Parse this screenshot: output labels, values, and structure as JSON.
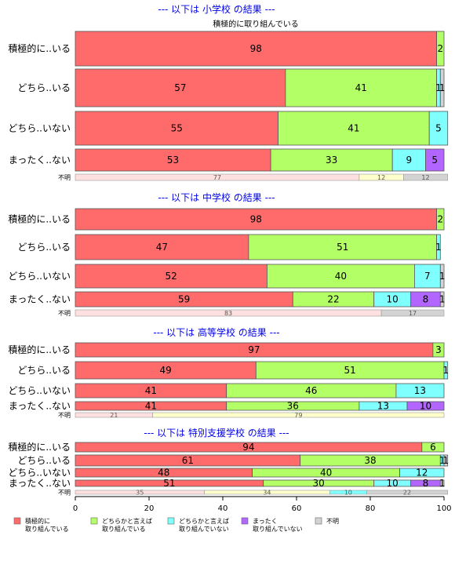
{
  "chart_data": {
    "type": "bar",
    "orientation": "horizontal",
    "stacked": true,
    "xlim": [
      0,
      100
    ],
    "x_ticks": [
      0,
      20,
      40,
      60,
      80,
      100
    ],
    "top_caption": "積極的に取り組んでいる",
    "colors": {
      "積極的に取り組んでいる": "#ff6b6b",
      "どちらかと言えば取り組んでいる": "#b3ff66",
      "どちらかと言えば取り組んでいない": "#80ffff",
      "まったく取り組んでいない": "#b366ff",
      "不明": "#d3d3d3",
      "unknown_seg1": "#ffe0e0",
      "unknown_seg2": "#ffffcc"
    },
    "legend": [
      {
        "key": "積極的に取り組んでいる",
        "lines": [
          "積極的に",
          "取り組んでいる"
        ]
      },
      {
        "key": "どちらかと言えば取り組んでいる",
        "lines": [
          "どちらかと言えば",
          "取り組んでいる"
        ]
      },
      {
        "key": "どちらかと言えば取り組んでいない",
        "lines": [
          "どちらかと言えば",
          "取り組んでいない"
        ]
      },
      {
        "key": "まったく取り組んでいない",
        "lines": [
          "まったく",
          "取り組んでいない"
        ]
      },
      {
        "key": "不明",
        "lines": [
          "不明"
        ]
      }
    ],
    "sections": [
      {
        "title": "--- 以下は 小学校 の結果 ---",
        "rows": [
          {
            "label": "積極的に..いる",
            "values": [
              98,
              2,
              0,
              0,
              0
            ]
          },
          {
            "label": "どちら..いる",
            "values": [
              57,
              41,
              1,
              0,
              1
            ]
          },
          {
            "label": "どちら..いない",
            "values": [
              55,
              41,
              5,
              0,
              0
            ]
          },
          {
            "label": "まったく..ない",
            "values": [
              53,
              33,
              9,
              5,
              0
            ]
          },
          {
            "label": "不明",
            "values": [
              77,
              12,
              0,
              0,
              12
            ],
            "small": true
          }
        ]
      },
      {
        "title": "--- 以下は 中学校 の結果 ---",
        "rows": [
          {
            "label": "積極的に..いる",
            "values": [
              98,
              2,
              0,
              0,
              0
            ]
          },
          {
            "label": "どちら..いる",
            "values": [
              47,
              51,
              1,
              0,
              0
            ]
          },
          {
            "label": "どちら..いない",
            "values": [
              52,
              40,
              7,
              0,
              1
            ]
          },
          {
            "label": "まったく..ない",
            "values": [
              59,
              22,
              10,
              8,
              1
            ]
          },
          {
            "label": "不明",
            "values": [
              83,
              0,
              0,
              0,
              17
            ],
            "small": true
          }
        ]
      },
      {
        "title": "--- 以下は 高等学校 の結果 ---",
        "rows": [
          {
            "label": "積極的に..いる",
            "values": [
              97,
              3,
              0,
              0,
              0
            ]
          },
          {
            "label": "どちら..いる",
            "values": [
              49,
              51,
              1,
              0,
              0
            ]
          },
          {
            "label": "どちら..いない",
            "values": [
              41,
              46,
              13,
              0,
              0
            ]
          },
          {
            "label": "まったく..ない",
            "values": [
              41,
              36,
              13,
              10,
              0
            ]
          },
          {
            "label": "不明",
            "values": [
              21,
              79,
              0,
              0,
              0
            ],
            "small": true
          }
        ]
      },
      {
        "title": "--- 以下は 特別支援学校 の結果 ---",
        "rows": [
          {
            "label": "積極的に..いる",
            "values": [
              94,
              6,
              0,
              0,
              0
            ]
          },
          {
            "label": "どちら..いる",
            "values": [
              61,
              38,
              1,
              0,
              1
            ]
          },
          {
            "label": "どちら..いない",
            "values": [
              48,
              40,
              12,
              0,
              0
            ]
          },
          {
            "label": "まったく..ない",
            "values": [
              51,
              30,
              10,
              8,
              1
            ]
          },
          {
            "label": "不明",
            "values": [
              35,
              34,
              10,
              0,
              22
            ],
            "small": true
          }
        ]
      }
    ]
  }
}
